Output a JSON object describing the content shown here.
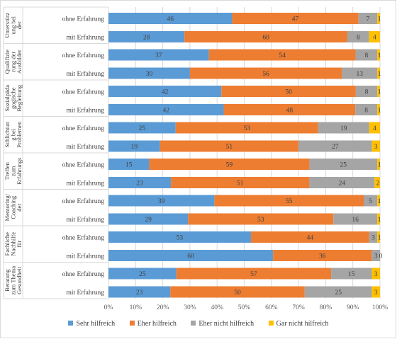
{
  "chart_data": {
    "type": "bar",
    "orientation": "horizontal",
    "stacked": "percent",
    "xlim": [
      0,
      100
    ],
    "x_ticks": [
      "0%",
      "10%",
      "20%",
      "30%",
      "40%",
      "50%",
      "60%",
      "70%",
      "80%",
      "90%",
      "100%"
    ],
    "grid": true,
    "legend_position": "bottom",
    "series": [
      {
        "name": "Sehr hilfreich",
        "color": "#5b9bd5"
      },
      {
        "name": "Eher hilfreich",
        "color": "#ed7d31"
      },
      {
        "name": "Eher nicht hilfreich",
        "color": "#a5a5a5"
      },
      {
        "name": "Gar nicht hilfreich",
        "color": "#ffc000"
      }
    ],
    "groups": [
      {
        "label": "Unterstützung bei der Beantragung von Fördermaßnahmen*",
        "rows": [
          {
            "label": "ohne Erfahrung",
            "values": [
              46,
              47,
              7,
              1
            ]
          },
          {
            "label": "mit Erfahrung",
            "values": [
              28,
              60,
              8,
              4
            ]
          }
        ]
      },
      {
        "label": "Qualifizierung der Ausbilder",
        "rows": [
          {
            "label": "ohne Erfahrung",
            "values": [
              37,
              54,
              8,
              1
            ]
          },
          {
            "label": "mit Erfahrung",
            "values": [
              30,
              56,
              13,
              1
            ]
          }
        ]
      },
      {
        "label": "Sozialpädagogische Begleitung der Auszubildenden*",
        "rows": [
          {
            "label": "ohne Erfahrung",
            "values": [
              42,
              50,
              8,
              1
            ]
          },
          {
            "label": "mit Erfahrung",
            "values": [
              42,
              48,
              8,
              1
            ]
          }
        ]
      },
      {
        "label": "Schlichtung bei Problemen (z.B. Mediation)",
        "rows": [
          {
            "label": "ohne Erfahrung",
            "values": [
              25,
              53,
              19,
              4
            ]
          },
          {
            "label": "mit Erfahrung",
            "values": [
              19,
              51,
              27,
              3
            ]
          }
        ]
      },
      {
        "label": "Treffen zum Erfahrungsaustausch mit Partnern *",
        "rows": [
          {
            "label": "ohne Erfahrung",
            "values": [
              15,
              59,
              25,
              1
            ]
          },
          {
            "label": "mit Erfahrung",
            "values": [
              23,
              51,
              24,
              2
            ]
          }
        ]
      },
      {
        "label": "Mentoring/Coaching der Ausbilder",
        "rows": [
          {
            "label": "ohne Erfahrung",
            "values": [
              39,
              55,
              5,
              1
            ]
          },
          {
            "label": "mit Erfahrung",
            "values": [
              29,
              53,
              16,
              1
            ]
          }
        ]
      },
      {
        "label": "Fachliche Nachhilfe für Auszubildende",
        "rows": [
          {
            "label": "ohne Erfahrung",
            "values": [
              53,
              44,
              3,
              1
            ]
          },
          {
            "label": "mit Erfahrung",
            "values": [
              60,
              36,
              3,
              0
            ]
          }
        ]
      },
      {
        "label": "Beratung zum Thema Gesundheitsmanagement",
        "rows": [
          {
            "label": "ohne Erfahrung",
            "values": [
              25,
              57,
              15,
              3
            ]
          },
          {
            "label": "mit Erfahrung",
            "values": [
              23,
              50,
              25,
              3
            ]
          }
        ]
      }
    ]
  }
}
